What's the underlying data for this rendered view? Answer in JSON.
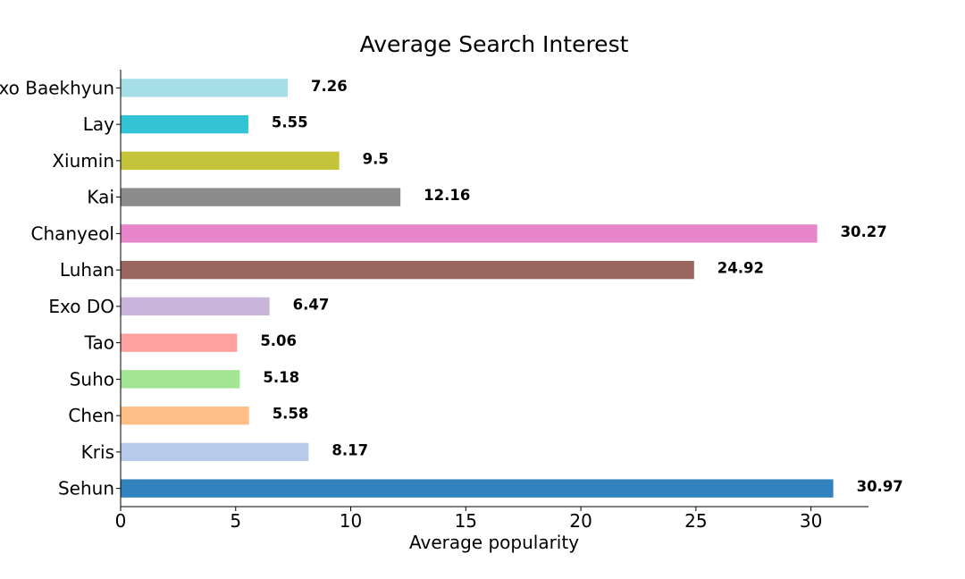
{
  "chart_data": {
    "type": "bar",
    "orientation": "horizontal",
    "title": "Average Search Interest",
    "xlabel": "Average popularity",
    "ylabel": "",
    "xlim": [
      0,
      32.5
    ],
    "xticks": [
      0,
      5,
      10,
      15,
      20,
      25,
      30
    ],
    "grid": false,
    "legend": "none",
    "categories": [
      "Sehun",
      "Kris",
      "Chen",
      "Suho",
      "Tao",
      "Exo DO",
      "Luhan",
      "Chanyeol",
      "Kai",
      "Xiumin",
      "Lay",
      "Exo Baekhyun"
    ],
    "values": [
      30.97,
      8.17,
      5.58,
      5.18,
      5.06,
      6.47,
      24.92,
      30.27,
      12.16,
      9.5,
      5.55,
      7.26
    ],
    "value_labels": [
      "30.97",
      "8.17",
      "5.58",
      "5.18",
      "5.06",
      "6.47",
      "24.92",
      "30.27",
      "12.16",
      "9.5",
      "5.55",
      "7.26"
    ],
    "colors": [
      "#3182bd",
      "#b8cbea",
      "#ffbf86",
      "#a3e595",
      "#ffa19f",
      "#c9b5d9",
      "#98665c",
      "#e685c9",
      "#8c8c8c",
      "#c3c439",
      "#32c4d4",
      "#a6dee7"
    ]
  }
}
